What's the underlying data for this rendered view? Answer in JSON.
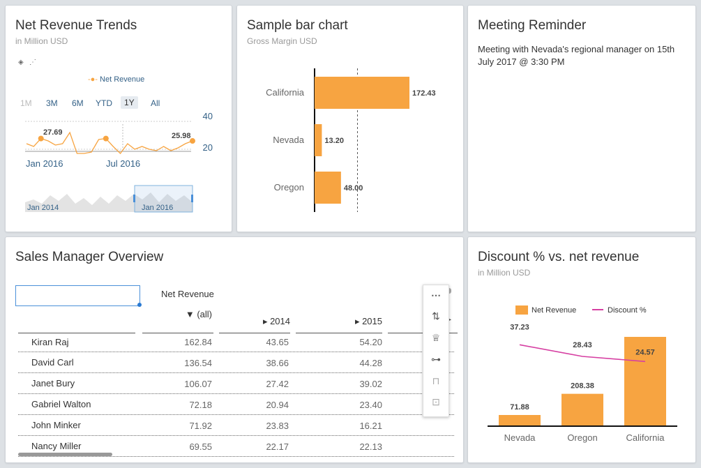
{
  "revenue_card": {
    "title": "Net Revenue Trends",
    "subtitle": "in Million USD",
    "legend": "Net Revenue",
    "ranges": [
      "1M",
      "3M",
      "6M",
      "YTD",
      "1Y",
      "All"
    ],
    "active_range": "1Y",
    "y_ticks": [
      "40",
      "20"
    ],
    "x_ticks": [
      "Jan 2016",
      "Jul 2016"
    ],
    "labels": [
      "27.69",
      "25.98"
    ],
    "navigator_labels": [
      "Jan 2014",
      "Jan 2016"
    ],
    "colors": {
      "line": "#f7a441",
      "axis_text": "#346187"
    }
  },
  "bar_card": {
    "title": "Sample bar chart",
    "subtitle": "Gross Margin USD"
  },
  "meeting_card": {
    "title": "Meeting Reminder",
    "text": "Meeting with Nevada's regional manager on 15th July 2017 @ 3:30 PM"
  },
  "sales_card": {
    "title": "Sales Manager Overview",
    "measure_header": "Net Revenue",
    "columns": [
      "▼ (all)",
      "▸ 2014",
      "▸ 2015"
    ],
    "rows": [
      {
        "name": "Kiran Raj",
        "all": "162.84",
        "y2014": "43.65",
        "y2015": "54.20"
      },
      {
        "name": "David Carl",
        "all": "136.54",
        "y2014": "38.66",
        "y2015": "44.28"
      },
      {
        "name": "Janet Bury",
        "all": "106.07",
        "y2014": "27.42",
        "y2015": "39.02"
      },
      {
        "name": "Gabriel Walton",
        "all": "72.18",
        "y2014": "20.94",
        "y2015": "23.40"
      },
      {
        "name": "John Minker",
        "all": "71.92",
        "y2014": "23.83",
        "y2015": "16.21"
      },
      {
        "name": "Nancy Miller",
        "all": "69.55",
        "y2014": "22.17",
        "y2015": "22.13"
      }
    ],
    "toolbar_icons": [
      "more-icon",
      "sort-icon",
      "trophy-icon",
      "hierarchy-icon",
      "unlock-icon",
      "trash-icon"
    ]
  },
  "discount_card": {
    "title": "Discount % vs. net revenue",
    "subtitle": "in Million USD"
  },
  "chart_data": [
    {
      "type": "line",
      "title": "Net Revenue Trends",
      "subtitle": "in Million USD",
      "series": [
        {
          "name": "Net Revenue",
          "values": [
            24,
            22,
            27.69,
            26,
            23,
            24,
            32,
            17,
            17,
            18,
            27,
            27.69,
            22,
            17,
            24,
            20,
            22,
            20,
            19,
            22,
            19,
            21,
            24,
            25.98
          ]
        }
      ],
      "annotations": [
        "27.69",
        "25.98"
      ],
      "x_ticks": [
        "Jan 2016",
        "Jul 2016"
      ],
      "y_ticks": [
        20,
        40
      ],
      "ylim": [
        10,
        40
      ],
      "legend": "top",
      "color": "#f7a441"
    },
    {
      "type": "bar",
      "orientation": "horizontal",
      "title": "Sample bar chart",
      "subtitle": "Gross Margin USD",
      "categories": [
        "California",
        "Nevada",
        "Oregon"
      ],
      "values": [
        172.43,
        13.2,
        48.0
      ],
      "xlim": [
        0,
        205
      ],
      "reference_line": 78,
      "color": "#f7a441"
    },
    {
      "type": "bar",
      "title": "Discount % vs. net revenue",
      "subtitle": "in Million USD",
      "categories": [
        "Nevada",
        "Oregon",
        "California"
      ],
      "series": [
        {
          "name": "Net Revenue",
          "type": "bar",
          "values": [
            71.88,
            208.38,
            576
          ],
          "labels": [
            "71.88",
            "208.38",
            ""
          ],
          "color": "#f7a441"
        },
        {
          "name": "Discount %",
          "type": "line",
          "values": [
            37.23,
            28.43,
            24.57
          ],
          "labels": [
            "37.23",
            "28.43",
            "24.57"
          ],
          "color": "#d63fa2"
        }
      ],
      "legend": "top"
    }
  ]
}
